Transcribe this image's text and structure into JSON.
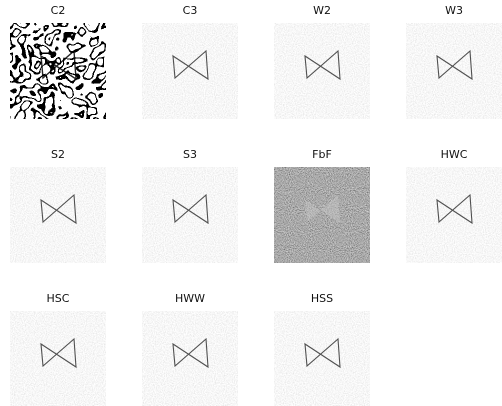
{
  "panels": [
    {
      "label": "C2"
    },
    {
      "label": "C3"
    },
    {
      "label": "W2"
    },
    {
      "label": "W3"
    },
    {
      "label": "S2"
    },
    {
      "label": "S3"
    },
    {
      "label": "FbF"
    },
    {
      "label": "HWC"
    },
    {
      "label": "HSC"
    },
    {
      "label": "HWW"
    },
    {
      "label": "HSS"
    }
  ]
}
